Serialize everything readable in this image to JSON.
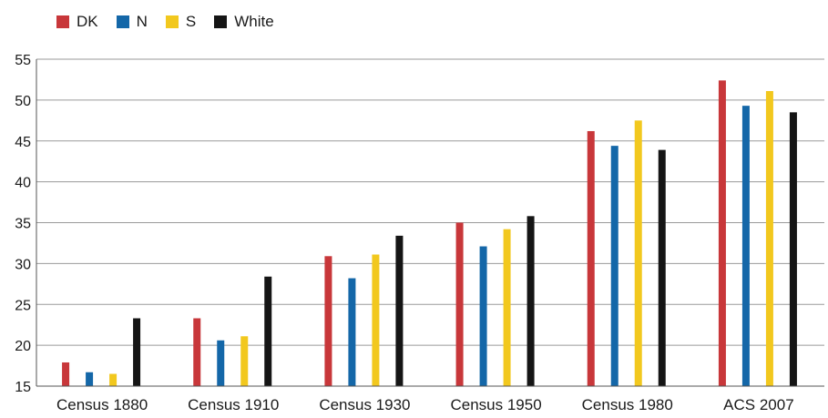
{
  "chart_data": {
    "type": "bar",
    "categories": [
      "Census 1880",
      "Census 1910",
      "Census 1930",
      "Census 1950",
      "Census 1980",
      "ACS 2007"
    ],
    "series": [
      {
        "name": "DK",
        "color": "#c8373a",
        "values": [
          17.9,
          23.3,
          30.9,
          35.0,
          46.2,
          52.4
        ]
      },
      {
        "name": "N",
        "color": "#1467a8",
        "values": [
          16.7,
          20.6,
          28.2,
          32.1,
          44.4,
          49.3
        ]
      },
      {
        "name": "S",
        "color": "#f2c81e",
        "values": [
          16.5,
          21.1,
          31.1,
          34.2,
          47.5,
          51.1
        ]
      },
      {
        "name": "White",
        "color": "#151515",
        "values": [
          23.3,
          28.4,
          33.4,
          35.8,
          43.9,
          48.5
        ]
      }
    ],
    "ylim": [
      15,
      55
    ],
    "yticks": [
      15,
      20,
      25,
      30,
      35,
      40,
      45,
      50,
      55
    ],
    "grid": true,
    "legend": "top-left",
    "title": "",
    "xlabel": "",
    "ylabel": ""
  }
}
